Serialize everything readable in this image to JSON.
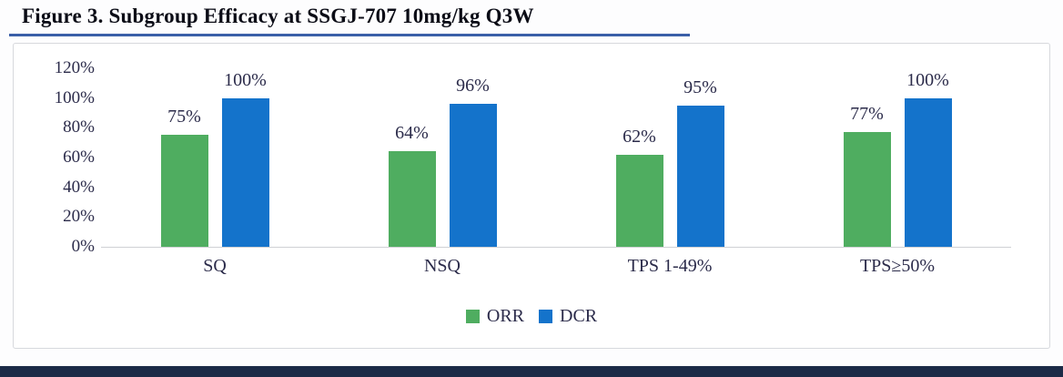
{
  "title": "Figure 3. Subgroup Efficacy at SSGJ-707 10mg/kg Q3W",
  "colors": {
    "orr_green": "#4fad60",
    "dcr_blue": "#1473cb",
    "text_navy": "#2b2b4a",
    "title_underline_blue": "#3a5fa8",
    "panel_border": "#d7d9dd",
    "axis_line": "#cfd1d4",
    "bottom_bar_navy": "#1c2b47"
  },
  "chart_data": {
    "type": "bar",
    "categories": [
      "SQ",
      "NSQ",
      "TPS 1-49%",
      "TPS≥50%"
    ],
    "series": [
      {
        "name": "ORR",
        "color": "#4fad60",
        "values": [
          75,
          64,
          62,
          77
        ]
      },
      {
        "name": "DCR",
        "color": "#1473cb",
        "values": [
          100,
          96,
          95,
          100
        ]
      }
    ],
    "data_labels": [
      [
        "75%",
        "100%"
      ],
      [
        "64%",
        "96%"
      ],
      [
        "62%",
        "95%"
      ],
      [
        "77%",
        "100%"
      ]
    ],
    "yticks": [
      "120%",
      "100%",
      "80%",
      "60%",
      "40%",
      "20%",
      "0%"
    ],
    "ytick_values": [
      120,
      100,
      80,
      60,
      40,
      20,
      0
    ],
    "ylim": [
      0,
      120
    ],
    "grid": false,
    "legend": [
      "ORR",
      "DCR"
    ],
    "legend_position": "bottom"
  }
}
